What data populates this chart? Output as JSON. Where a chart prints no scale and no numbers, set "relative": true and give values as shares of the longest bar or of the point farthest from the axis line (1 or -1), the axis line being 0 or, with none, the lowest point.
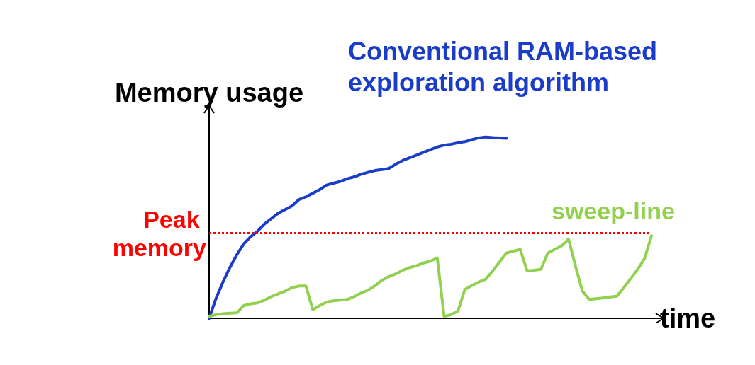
{
  "chart_data": {
    "type": "line",
    "relative": true,
    "xlabel": "time",
    "ylabel": "Memory usage",
    "marker": "none",
    "grid": false,
    "categories": [
      null,
      null,
      null,
      null,
      null,
      null,
      null,
      null,
      null,
      null,
      null,
      null,
      null,
      null,
      null,
      null,
      null,
      null,
      null,
      null,
      null,
      null,
      null,
      null,
      null,
      null,
      null,
      null,
      null,
      null,
      null,
      null,
      null,
      null,
      null,
      null,
      null,
      null,
      null,
      null,
      null,
      null,
      null,
      null,
      null,
      null,
      null,
      null,
      null,
      null,
      null,
      null,
      null,
      null,
      null,
      null,
      null,
      null,
      null,
      null,
      null,
      null,
      null,
      null,
      null
    ],
    "series": [
      {
        "name": "Conventional RAM-based exploration algorithm",
        "color": "#1a3cc8",
        "values": [
          0,
          0.11,
          0.2,
          0.28,
          0.35,
          0.41,
          0.45,
          0.48,
          0.52,
          0.55,
          0.58,
          0.6,
          0.62,
          0.655,
          0.67,
          0.69,
          0.71,
          0.735,
          0.745,
          0.755,
          0.77,
          0.78,
          0.795,
          0.805,
          0.815,
          0.82,
          0.826,
          0.85,
          0.87,
          0.885,
          0.9,
          0.915,
          0.93,
          0.945,
          0.955,
          0.96,
          0.968,
          0.974,
          0.985,
          0.995,
          1,
          0.997,
          0.995,
          0.993,
          null,
          null,
          null,
          null,
          null,
          null,
          null,
          null,
          null,
          null,
          null,
          null,
          null,
          null,
          null,
          null,
          null,
          null,
          null,
          null,
          null
        ]
      },
      {
        "name": "sweep-line",
        "color": "#92d050",
        "values": [
          0.011,
          0.02,
          0.025,
          0.028,
          0.03,
          0.07,
          0.08,
          0.085,
          0.1,
          0.12,
          0.135,
          0.15,
          0.17,
          0.178,
          0.178,
          0.048,
          0.07,
          0.09,
          0.097,
          0.1,
          0.104,
          0.12,
          0.14,
          0.155,
          0.18,
          0.21,
          0.23,
          0.245,
          0.265,
          0.28,
          0.29,
          0.305,
          0.315,
          0.333,
          0.011,
          0.02,
          0.04,
          0.159,
          0.18,
          0.2,
          0.215,
          0.26,
          0.31,
          0.36,
          0.37,
          0.381,
          0.262,
          0.265,
          0.27,
          0.36,
          0.38,
          0.4,
          0.437,
          0.289,
          0.15,
          0.104,
          0.108,
          0.112,
          0.118,
          0.122,
          0.17,
          0.22,
          0.27,
          0.33,
          0.455
        ]
      }
    ],
    "ref_lines": [
      {
        "axis": "y",
        "value": 0.474,
        "label": "Peak memory",
        "color": "#ff0000",
        "line_style": "dotted"
      }
    ]
  }
}
